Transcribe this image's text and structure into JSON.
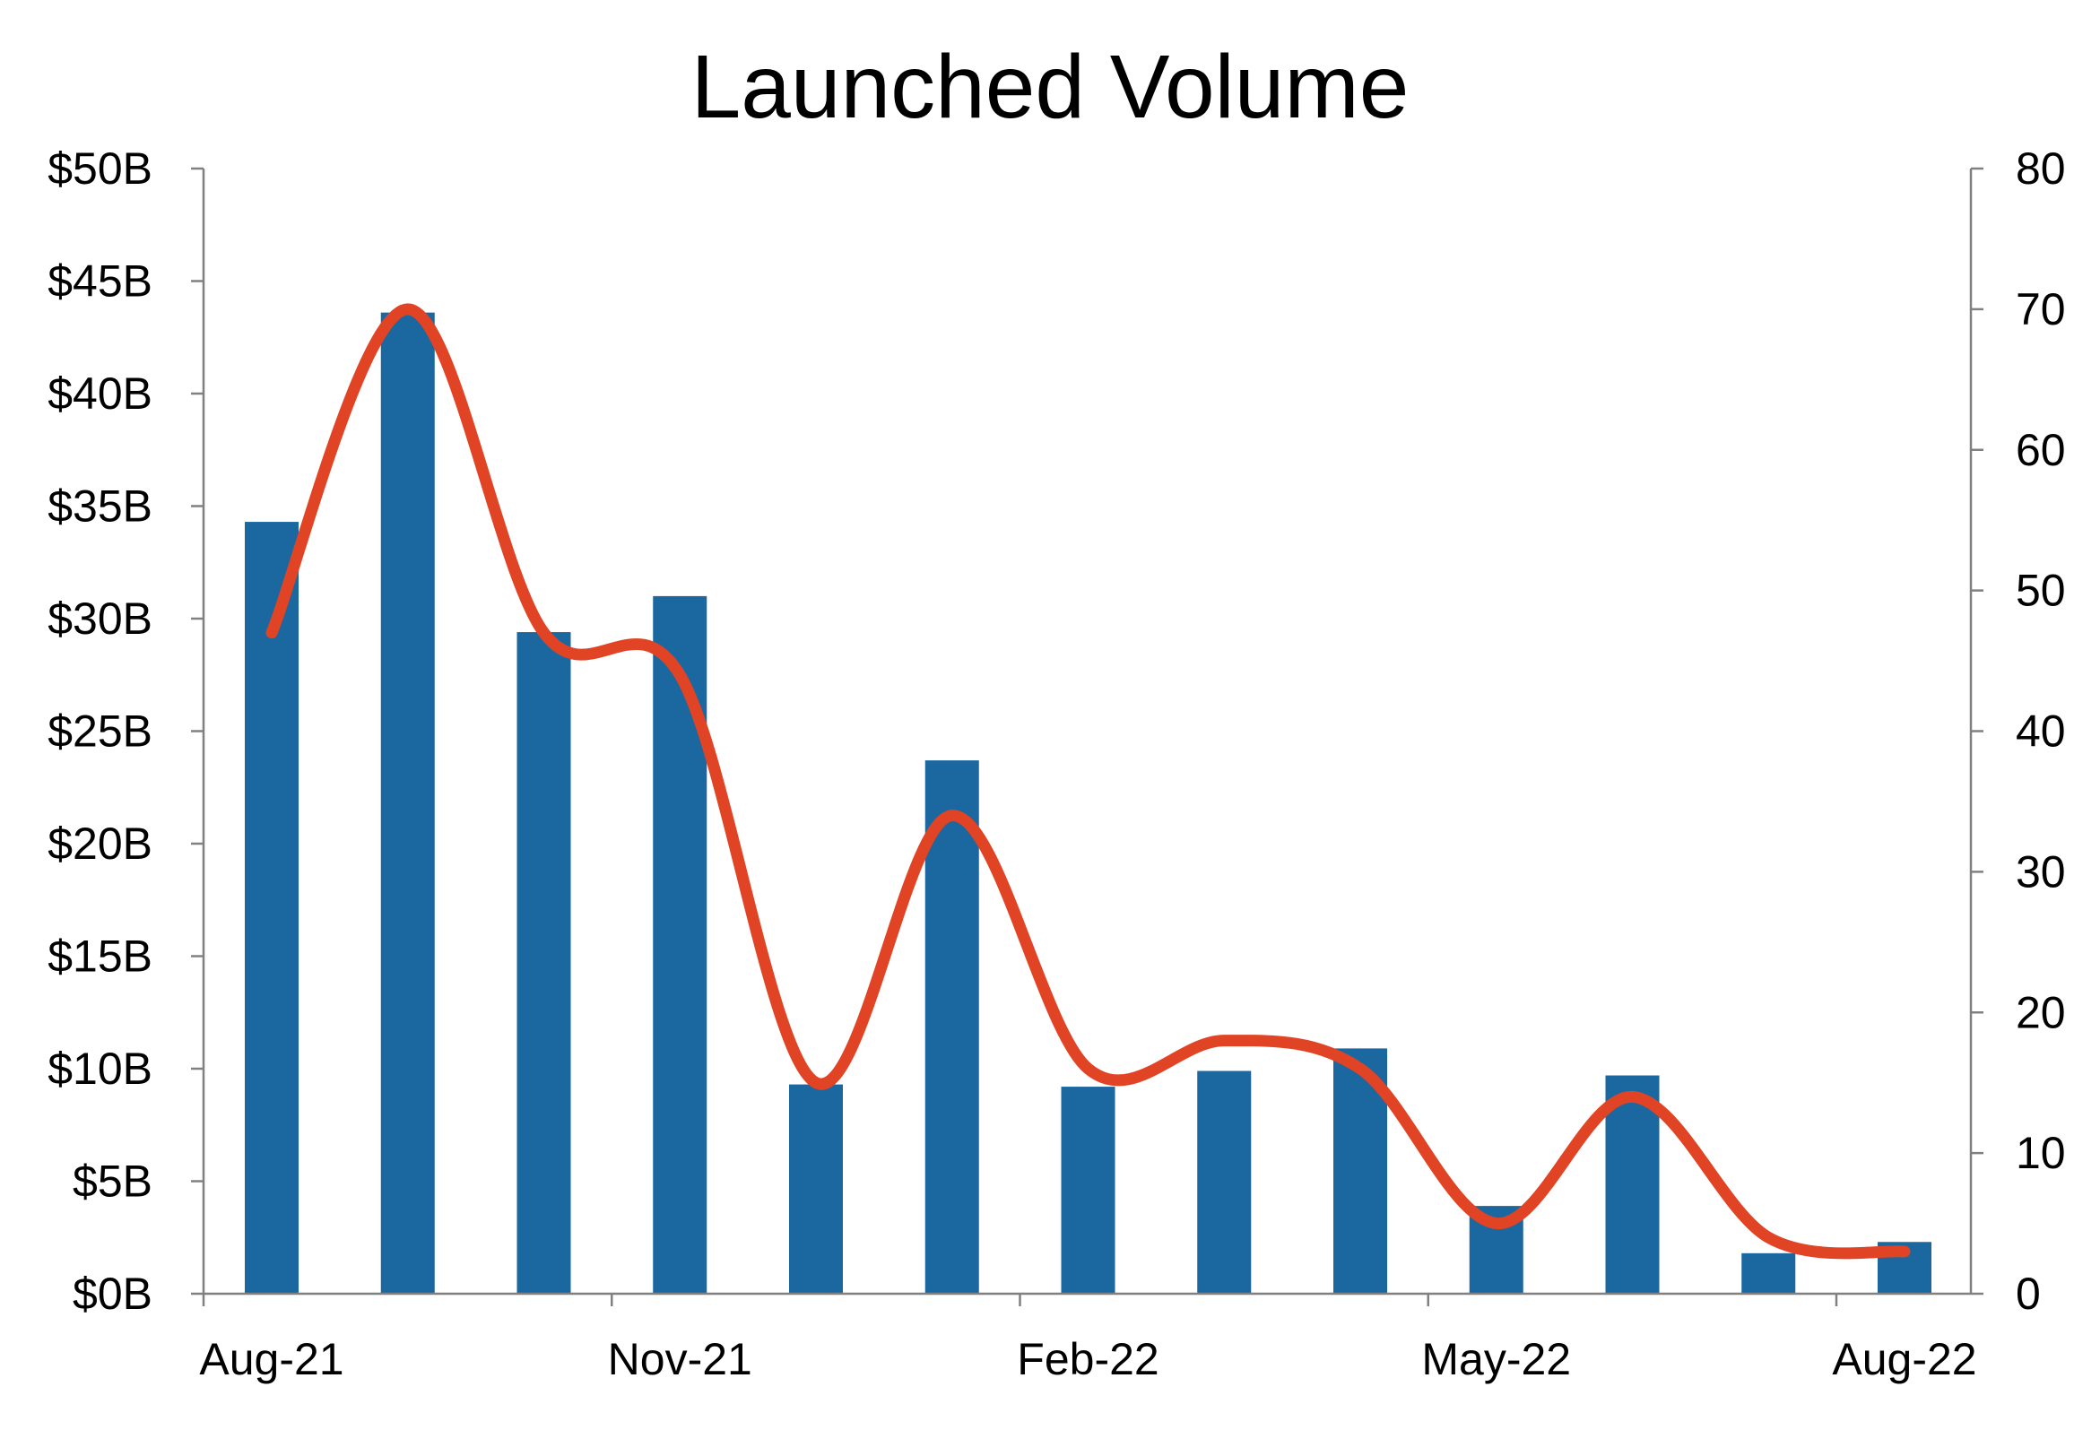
{
  "chart_data": {
    "type": "bar",
    "title": "Launched Volume",
    "x": [
      "2021-08",
      "2021-09",
      "2021-10",
      "2021-11",
      "2021-12",
      "2022-01",
      "2022-02",
      "2022-03",
      "2022-04",
      "2022-05",
      "2022-06",
      "2022-07",
      "2022-08"
    ],
    "x_tick_labels": [
      "Aug-21",
      "Nov-21",
      "Feb-22",
      "May-22",
      "Aug-22"
    ],
    "series": [
      {
        "type": "bar",
        "axis": "left",
        "values": [
          34.3,
          43.6,
          29.4,
          31.0,
          9.3,
          23.7,
          9.2,
          9.9,
          10.9,
          3.9,
          9.7,
          1.8,
          2.3
        ]
      },
      {
        "type": "line",
        "axis": "right",
        "smooth": true,
        "values": [
          47,
          70,
          47,
          44,
          15,
          34,
          16,
          18,
          16,
          5,
          14,
          4,
          3
        ]
      }
    ],
    "y_left": {
      "ylim": [
        0,
        50
      ],
      "ticks": [
        0,
        5,
        10,
        15,
        20,
        25,
        30,
        35,
        40,
        45,
        50
      ],
      "tick_labels": [
        "$0B",
        "$5B",
        "$10B",
        "$15B",
        "$20B",
        "$25B",
        "$30B",
        "$35B",
        "$40B",
        "$45B",
        "$50B"
      ]
    },
    "y_right": {
      "ylim": [
        0,
        80
      ],
      "ticks": [
        0,
        10,
        20,
        30,
        40,
        50,
        60,
        70,
        80
      ],
      "tick_labels": [
        "0",
        "10",
        "20",
        "30",
        "40",
        "50",
        "60",
        "70",
        "80"
      ]
    },
    "grid": false,
    "legend": false,
    "colors": {
      "bar": "#1b679f",
      "line": "#e04424",
      "axis": "#808080"
    }
  }
}
